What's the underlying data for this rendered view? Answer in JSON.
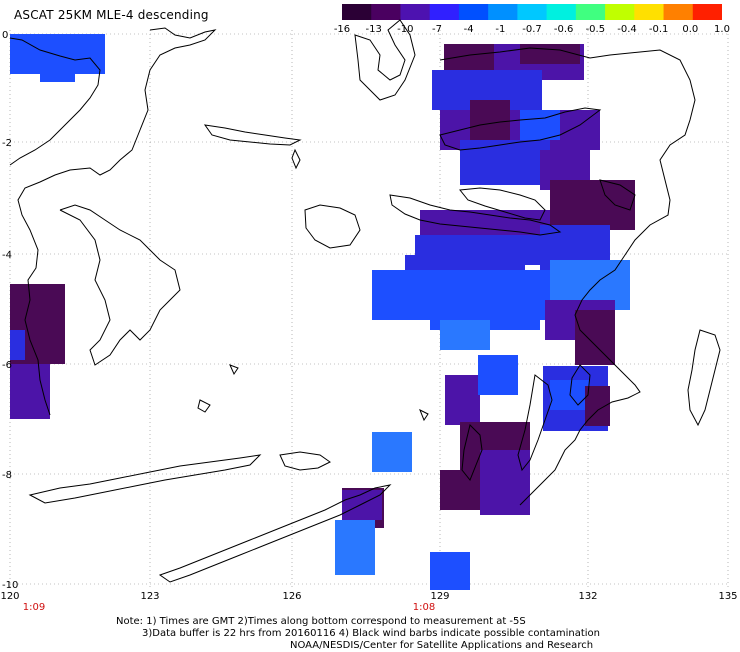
{
  "title": "ASCAT 25KM MLE-4 descending",
  "colorbar": {
    "labels": [
      "-16",
      "-13",
      "-10",
      "-7",
      "-4",
      "-1",
      "-0.7",
      "-0.6",
      "-0.5",
      "-0.4",
      "-0.1",
      "0.0",
      "1.0"
    ],
    "colors": [
      "#2b0035",
      "#4a0060",
      "#4d12b0",
      "#3020ff",
      "#0050ff",
      "#0090ff",
      "#00c8ff",
      "#00f0e0",
      "#40ff80",
      "#c0ff00",
      "#ffe000",
      "#ff8000",
      "#ff2000"
    ]
  },
  "axes": {
    "y_ticks": [
      "0",
      "-2",
      "-4",
      "-6",
      "-8",
      "-10"
    ],
    "x_ticks": [
      "120",
      "123",
      "126",
      "129",
      "132",
      "135"
    ]
  },
  "time_labels": [
    "1:09",
    "1:08"
  ],
  "notes": {
    "line1": "Note: 1) Times are GMT 2)Times along bottom correspond to measurement at -5S",
    "line2": "3)Data buffer is 22 hrs from 20160116 4) Black wind barbs indicate possible contamination",
    "line3": "NOAA/NESDIS/Center for Satellite Applications and Research"
  },
  "colors": {
    "dark_purple": "#4a0a55",
    "purple": "#4c14a8",
    "blue": "#2a2ee0",
    "bright_blue": "#1d4fff",
    "sky_blue": "#2a78ff"
  }
}
